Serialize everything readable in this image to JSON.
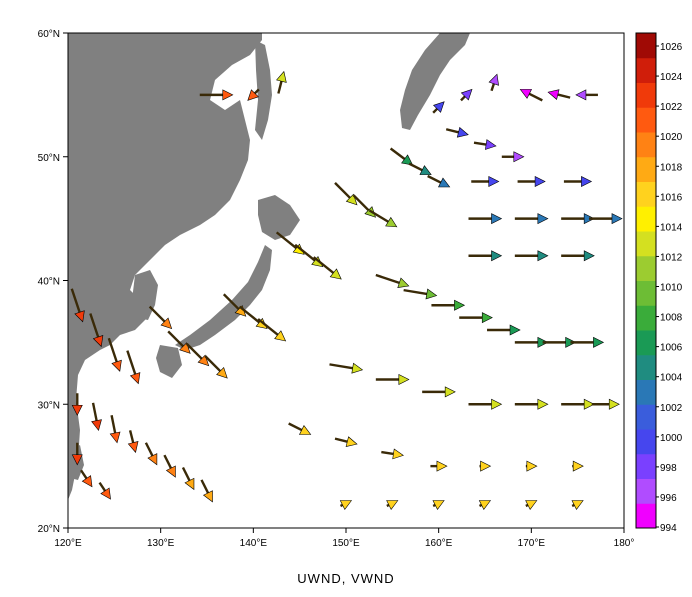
{
  "title": "UWND, VWND",
  "x_ticks": [
    "120°E",
    "130°E",
    "140°E",
    "150°E",
    "160°E",
    "170°E",
    "180°"
  ],
  "y_ticks": [
    "20°N",
    "30°N",
    "40°N",
    "50°N",
    "60°N"
  ],
  "colorbar_labels": [
    "994",
    "996",
    "998",
    "1000",
    "1002",
    "1004",
    "1006",
    "1008",
    "1010",
    "1012",
    "1014",
    "1016",
    "1018",
    "1020",
    "1022",
    "1024",
    "1026"
  ],
  "colorbar_colors": [
    "#f000ff",
    "#b04cff",
    "#7a40ff",
    "#4646ee",
    "#3a5ddc",
    "#2a78b6",
    "#1f8c80",
    "#1a9a55",
    "#3aac3a",
    "#6dbd35",
    "#9ccc30",
    "#d4e020",
    "#fff000",
    "#ffd21e",
    "#ffaa14",
    "#ff8214",
    "#ff5a10",
    "#f03a0a",
    "#d01e0a",
    "#a00a05"
  ],
  "land_color": "#808080",
  "chart_data": {
    "type": "vector-map",
    "description_fields": [
      "lon",
      "lat",
      "u",
      "v",
      "slp"
    ],
    "lon_range": [
      120,
      180
    ],
    "lat_range": [
      20,
      60
    ],
    "value_range": [
      994,
      1026
    ],
    "vectors": [
      [
        122,
        58,
        0,
        0,
        0
      ],
      [
        136,
        55,
        3,
        0,
        1020
      ],
      [
        140,
        55,
        -1,
        -1,
        1021
      ],
      [
        143,
        56,
        0.5,
        2,
        1013
      ],
      [
        121,
        38,
        1,
        -3,
        1022
      ],
      [
        123,
        36,
        1,
        -3,
        1022
      ],
      [
        125,
        34,
        1,
        -3,
        1021
      ],
      [
        127,
        33,
        1,
        -3,
        1021
      ],
      [
        121,
        30,
        0,
        -2,
        1022
      ],
      [
        123,
        29,
        0.5,
        -2.5,
        1022
      ],
      [
        125,
        28,
        0.5,
        -2.5,
        1021
      ],
      [
        127,
        27,
        0.5,
        -2,
        1020
      ],
      [
        129,
        26,
        1,
        -2,
        1019
      ],
      [
        131,
        25,
        1,
        -2,
        1018
      ],
      [
        133,
        24,
        1,
        -2,
        1017
      ],
      [
        135,
        23,
        1,
        -2,
        1017
      ],
      [
        121,
        26,
        0,
        -2,
        1022
      ],
      [
        122,
        24,
        1,
        -1.5,
        1021
      ],
      [
        124,
        23,
        1,
        -1.5,
        1020
      ],
      [
        130,
        37,
        2,
        -2,
        1019
      ],
      [
        132,
        35,
        2,
        -2,
        1019
      ],
      [
        134,
        34,
        2,
        -2,
        1018
      ],
      [
        136,
        33,
        2,
        -2,
        1017
      ],
      [
        138,
        38,
        2,
        -2,
        1017
      ],
      [
        140,
        37,
        2.5,
        -2,
        1016
      ],
      [
        142,
        36,
        2.5,
        -2,
        1015
      ],
      [
        144,
        43,
        2.5,
        -2,
        1014
      ],
      [
        146,
        42,
        2.5,
        -2,
        1013
      ],
      [
        148,
        41,
        2.5,
        -2,
        1012
      ],
      [
        150,
        47,
        2,
        -2,
        1012
      ],
      [
        152,
        46,
        2,
        -2,
        1011
      ],
      [
        154,
        45,
        2.5,
        -1.5,
        1010
      ],
      [
        156,
        50,
        2,
        -1.5,
        1006
      ],
      [
        158,
        49,
        2,
        -1,
        1004
      ],
      [
        160,
        48,
        2,
        -1,
        1002
      ],
      [
        162,
        52,
        2,
        -0.5,
        999
      ],
      [
        165,
        51,
        2,
        -0.3,
        998
      ],
      [
        168,
        50,
        2,
        0,
        997
      ],
      [
        160,
        54,
        1,
        1,
        1000
      ],
      [
        163,
        55,
        1,
        1,
        998
      ],
      [
        166,
        56,
        0.5,
        1.5,
        996
      ],
      [
        170,
        55,
        -2,
        1,
        995
      ],
      [
        173,
        55,
        -2,
        0.5,
        995
      ],
      [
        176,
        55,
        -2,
        0,
        996
      ],
      [
        155,
        40,
        3,
        -1,
        1010
      ],
      [
        158,
        39,
        3,
        -0.5,
        1009
      ],
      [
        161,
        38,
        3,
        0,
        1008
      ],
      [
        164,
        37,
        3,
        0,
        1007
      ],
      [
        167,
        36,
        3,
        0,
        1006
      ],
      [
        170,
        35,
        3,
        0,
        1006
      ],
      [
        173,
        35,
        3,
        0,
        1006
      ],
      [
        176,
        35,
        3,
        0,
        1006
      ],
      [
        150,
        33,
        3,
        -0.5,
        1012
      ],
      [
        155,
        32,
        3,
        0,
        1012
      ],
      [
        160,
        31,
        3,
        0,
        1012
      ],
      [
        165,
        30,
        3,
        0,
        1013
      ],
      [
        170,
        30,
        3,
        0,
        1013
      ],
      [
        175,
        30,
        3,
        0,
        1013
      ],
      [
        178,
        30,
        2.5,
        0,
        1013
      ],
      [
        145,
        28,
        2,
        -1,
        1015
      ],
      [
        150,
        27,
        2,
        -0.5,
        1015
      ],
      [
        155,
        26,
        2,
        -0.3,
        1015
      ],
      [
        160,
        25,
        1.5,
        0,
        1016
      ],
      [
        165,
        25,
        1,
        0,
        1016
      ],
      [
        170,
        25,
        1,
        0,
        1016
      ],
      [
        175,
        25,
        1,
        0,
        1016
      ],
      [
        150,
        22,
        1,
        0.5,
        1016
      ],
      [
        155,
        22,
        1,
        0.5,
        1016
      ],
      [
        160,
        22,
        1,
        0.5,
        1016
      ],
      [
        165,
        22,
        1,
        0.5,
        1015
      ],
      [
        170,
        22,
        1,
        0.5,
        1015
      ],
      [
        175,
        22,
        1,
        0.5,
        1015
      ],
      [
        165,
        45,
        3,
        0,
        1003
      ],
      [
        170,
        45,
        3,
        0,
        1002
      ],
      [
        175,
        45,
        3,
        0,
        1002
      ],
      [
        178,
        45,
        3,
        0,
        1002
      ],
      [
        165,
        42,
        3,
        0,
        1005
      ],
      [
        170,
        42,
        3,
        0,
        1004
      ],
      [
        175,
        42,
        3,
        0,
        1004
      ],
      [
        165,
        48,
        2.5,
        0,
        1000
      ],
      [
        170,
        48,
        2.5,
        0,
        1000
      ],
      [
        175,
        48,
        2.5,
        0,
        1000
      ]
    ]
  }
}
